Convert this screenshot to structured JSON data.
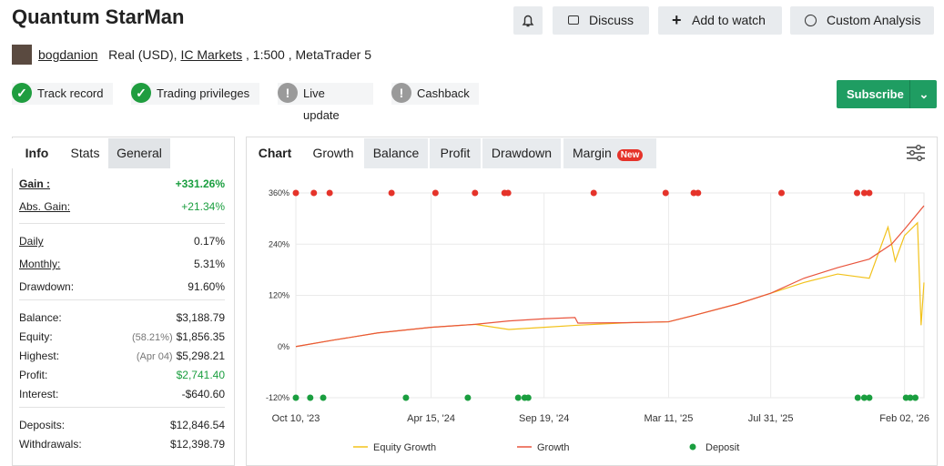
{
  "header": {
    "title": "Quantum StarMan",
    "buttons": [
      "Discuss",
      "Add to watch",
      "Custom Analysis"
    ],
    "user": "bogdanion",
    "account_prefix": "Real (USD),",
    "broker": "IC Markets",
    "account_suffix": ", 1:500 , MetaTrader 5"
  },
  "badges": [
    {
      "label": "Track record",
      "ok": true
    },
    {
      "label": "Trading privileges",
      "ok": true
    },
    {
      "label": "Live update",
      "ok": false
    },
    {
      "label": "Cashback",
      "ok": false
    }
  ],
  "subscribe": "Subscribe",
  "left_tabs": [
    "Info",
    "Stats",
    "General"
  ],
  "stats": [
    [
      {
        "label": "Gain :",
        "value": "+331.26%",
        "link": true,
        "bold": true,
        "green": true
      },
      {
        "label": "Abs. Gain:",
        "value": "+21.34%",
        "link": true,
        "green": true
      }
    ],
    [
      {
        "label": "Daily",
        "value": "0.17%",
        "link": true
      },
      {
        "label": "Monthly:",
        "value": "5.31%",
        "link": true
      },
      {
        "label": "Drawdown:",
        "value": "91.60%"
      }
    ],
    [
      {
        "label": "Balance:",
        "value": "$3,188.79"
      },
      {
        "label": "Equity:",
        "note": "(58.21%)",
        "value": "$1,856.35"
      },
      {
        "label": "Highest:",
        "note": "(Apr 04)",
        "value": "$5,298.21"
      },
      {
        "label": "Profit:",
        "value": "$2,741.40",
        "green": true
      },
      {
        "label": "Interest:",
        "value": "-$640.60"
      }
    ],
    [
      {
        "label": "Deposits:",
        "value": "$12,846.54"
      },
      {
        "label": "Withdrawals:",
        "value": "$12,398.79"
      }
    ]
  ],
  "chart_tabs": [
    "Chart",
    "Growth",
    "Balance",
    "Profit",
    "Drawdown",
    "Margin"
  ],
  "new_badge": "New",
  "chart_data": {
    "type": "line",
    "xlim": [
      "2023-10-10",
      "2026-03-01"
    ],
    "xticks": [
      {
        "value": "2023-10-10",
        "label": "Oct 10, '23"
      },
      {
        "value": "2024-04-15",
        "label": "Apr 15, '24"
      },
      {
        "value": "2024-09-19",
        "label": "Sep 19, '24"
      },
      {
        "value": "2025-03-11",
        "label": "Mar 11, '25"
      },
      {
        "value": "2025-07-31",
        "label": "Jul 31, '25"
      },
      {
        "value": "2026-02-02",
        "label": "Feb 02, '26"
      }
    ],
    "ylim": [
      -120,
      360
    ],
    "yticks": [
      {
        "value": -120,
        "label": "-120%"
      },
      {
        "value": 0,
        "label": "0%"
      },
      {
        "value": 120,
        "label": "120%"
      },
      {
        "value": 240,
        "label": "240%"
      },
      {
        "value": 360,
        "label": "360%"
      }
    ],
    "grid": true,
    "series": [
      {
        "name": "Equity Growth",
        "color": "#f2c21b",
        "kind": "line",
        "x": [
          "2023-10-10",
          "2023-12-01",
          "2024-02-01",
          "2024-04-15",
          "2024-06-15",
          "2024-08-01",
          "2024-09-19",
          "2024-11-05",
          "2025-01-15",
          "2025-03-11",
          "2025-04-20",
          "2025-06-15",
          "2025-07-31",
          "2025-09-15",
          "2025-11-01",
          "2025-12-15",
          "2026-01-10",
          "2026-01-20",
          "2026-02-02",
          "2026-02-20",
          "2026-02-25",
          "2026-03-01"
        ],
        "values": [
          0,
          15,
          32,
          45,
          52,
          40,
          45,
          50,
          56,
          58,
          75,
          100,
          125,
          150,
          170,
          160,
          280,
          200,
          260,
          290,
          50,
          150
        ]
      },
      {
        "name": "Growth",
        "color": "#e9553d",
        "kind": "line",
        "x": [
          "2023-10-10",
          "2023-12-01",
          "2024-02-01",
          "2024-04-15",
          "2024-06-15",
          "2024-08-01",
          "2024-09-19",
          "2024-11-01",
          "2024-11-05",
          "2025-01-15",
          "2025-03-11",
          "2025-04-20",
          "2025-06-15",
          "2025-07-31",
          "2025-09-15",
          "2025-11-01",
          "2025-12-15",
          "2026-01-15",
          "2026-02-02",
          "2026-03-01"
        ],
        "values": [
          0,
          15,
          32,
          45,
          52,
          60,
          65,
          68,
          55,
          56,
          58,
          75,
          100,
          125,
          160,
          185,
          205,
          240,
          275,
          330
        ]
      },
      {
        "name": "Deposit",
        "color": "#1a9e3f",
        "kind": "dots",
        "x": [
          "2023-10-10",
          "2023-10-30",
          "2023-11-17",
          "2024-03-11",
          "2024-06-05",
          "2024-08-14",
          "2024-08-23",
          "2024-08-28",
          "2025-11-29",
          "2025-12-08",
          "2025-12-15",
          "2026-02-04",
          "2026-02-10",
          "2026-02-17"
        ],
        "values": [
          -120,
          -120,
          -120,
          -120,
          -120,
          -120,
          -120,
          -120,
          -120,
          -120,
          -120,
          -120,
          -120,
          -120
        ]
      },
      {
        "color": "#e5332a",
        "kind": "dots",
        "x": [
          "2023-10-10",
          "2023-11-04",
          "2023-11-26",
          "2024-02-20",
          "2024-04-21",
          "2024-06-15",
          "2024-07-26",
          "2024-07-31",
          "2024-11-27",
          "2025-03-07",
          "2025-04-15",
          "2025-04-21",
          "2025-08-15",
          "2025-11-28",
          "2025-12-08",
          "2025-12-15"
        ],
        "values": [
          360,
          360,
          360,
          360,
          360,
          360,
          360,
          360,
          360,
          360,
          360,
          360,
          360,
          360,
          360,
          360
        ]
      }
    ]
  }
}
